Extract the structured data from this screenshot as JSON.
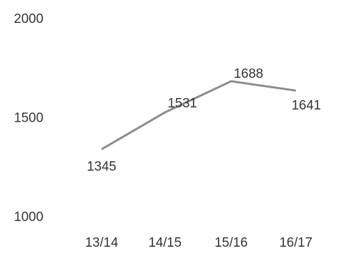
{
  "chart_data": {
    "type": "line",
    "categories": [
      "13/14",
      "14/15",
      "15/16",
      "16/17"
    ],
    "series": [
      {
        "values": [
          1345,
          1531,
          1688,
          1641
        ]
      }
    ],
    "y_ticks": [
      "2000",
      "1500",
      "1000"
    ],
    "ylim": [
      1000,
      2000
    ],
    "grid": false,
    "legend": "none",
    "line_color": "#8c8c8c",
    "text_color": "#333333"
  }
}
